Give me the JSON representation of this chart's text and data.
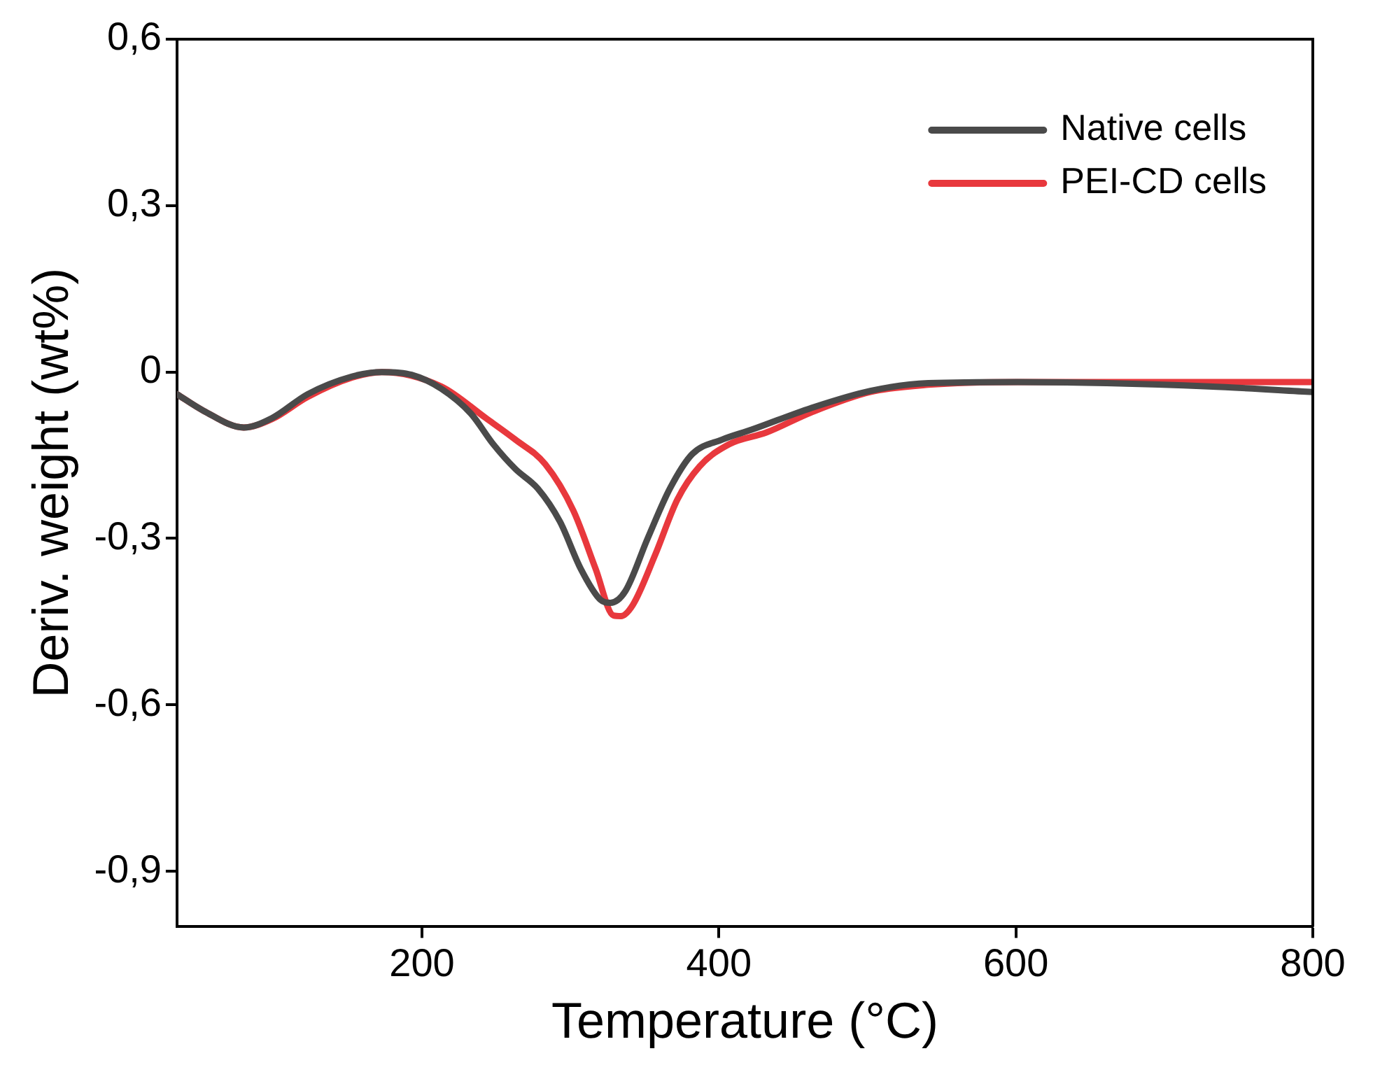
{
  "chart_data": {
    "type": "line",
    "xlabel": "Temperature (°C)",
    "ylabel": "Deriv. weight (wt%)",
    "xlim": [
      35,
      800
    ],
    "xticks": [
      200,
      400,
      600,
      800
    ],
    "ylim": [
      -1.0,
      0.6
    ],
    "yticks": [
      {
        "value": 0.6,
        "label": "0,6"
      },
      {
        "value": 0.3,
        "label": "0,3"
      },
      {
        "value": 0,
        "label": "0"
      },
      {
        "value": -0.3,
        "label": "-0,3"
      },
      {
        "value": -0.6,
        "label": "-0,6"
      },
      {
        "value": -0.9,
        "label": "-0,9"
      }
    ],
    "grid": false,
    "legend": "top right",
    "marker": "none",
    "line_style": "solid",
    "series": [
      {
        "name": "Native cells",
        "color": "#4a4a4a",
        "x": [
          35,
          53,
          80,
          99,
          123,
          153,
          173,
          193,
          213,
          233,
          248,
          263,
          278,
          293,
          307,
          320,
          327,
          337,
          352,
          367,
          382,
          402,
          422,
          462,
          502,
          541,
          601,
          661,
          730,
          800
        ],
        "values": [
          -0.04,
          -0.07,
          -0.1,
          -0.083,
          -0.04,
          -0.008,
          0,
          -0.005,
          -0.03,
          -0.075,
          -0.13,
          -0.175,
          -0.21,
          -0.27,
          -0.355,
          -0.41,
          -0.416,
          -0.395,
          -0.3,
          -0.21,
          -0.148,
          -0.122,
          -0.104,
          -0.065,
          -0.034,
          -0.02,
          -0.018,
          -0.02,
          -0.026,
          -0.036
        ]
      },
      {
        "name": "PEI-CD cells",
        "color": "#e8383d",
        "x": [
          35,
          53,
          80,
          99,
          123,
          153,
          173,
          213,
          243,
          263,
          283,
          302,
          317,
          329,
          334,
          342,
          357,
          372,
          387,
          407,
          432,
          462,
          502,
          541,
          601,
          700,
          800
        ],
        "values": [
          -0.04,
          -0.07,
          -0.1,
          -0.085,
          -0.045,
          -0.01,
          0,
          -0.026,
          -0.083,
          -0.122,
          -0.166,
          -0.25,
          -0.355,
          -0.439,
          -0.44,
          -0.42,
          -0.33,
          -0.23,
          -0.17,
          -0.13,
          -0.109,
          -0.073,
          -0.036,
          -0.023,
          -0.018,
          -0.018,
          -0.018
        ]
      }
    ]
  }
}
